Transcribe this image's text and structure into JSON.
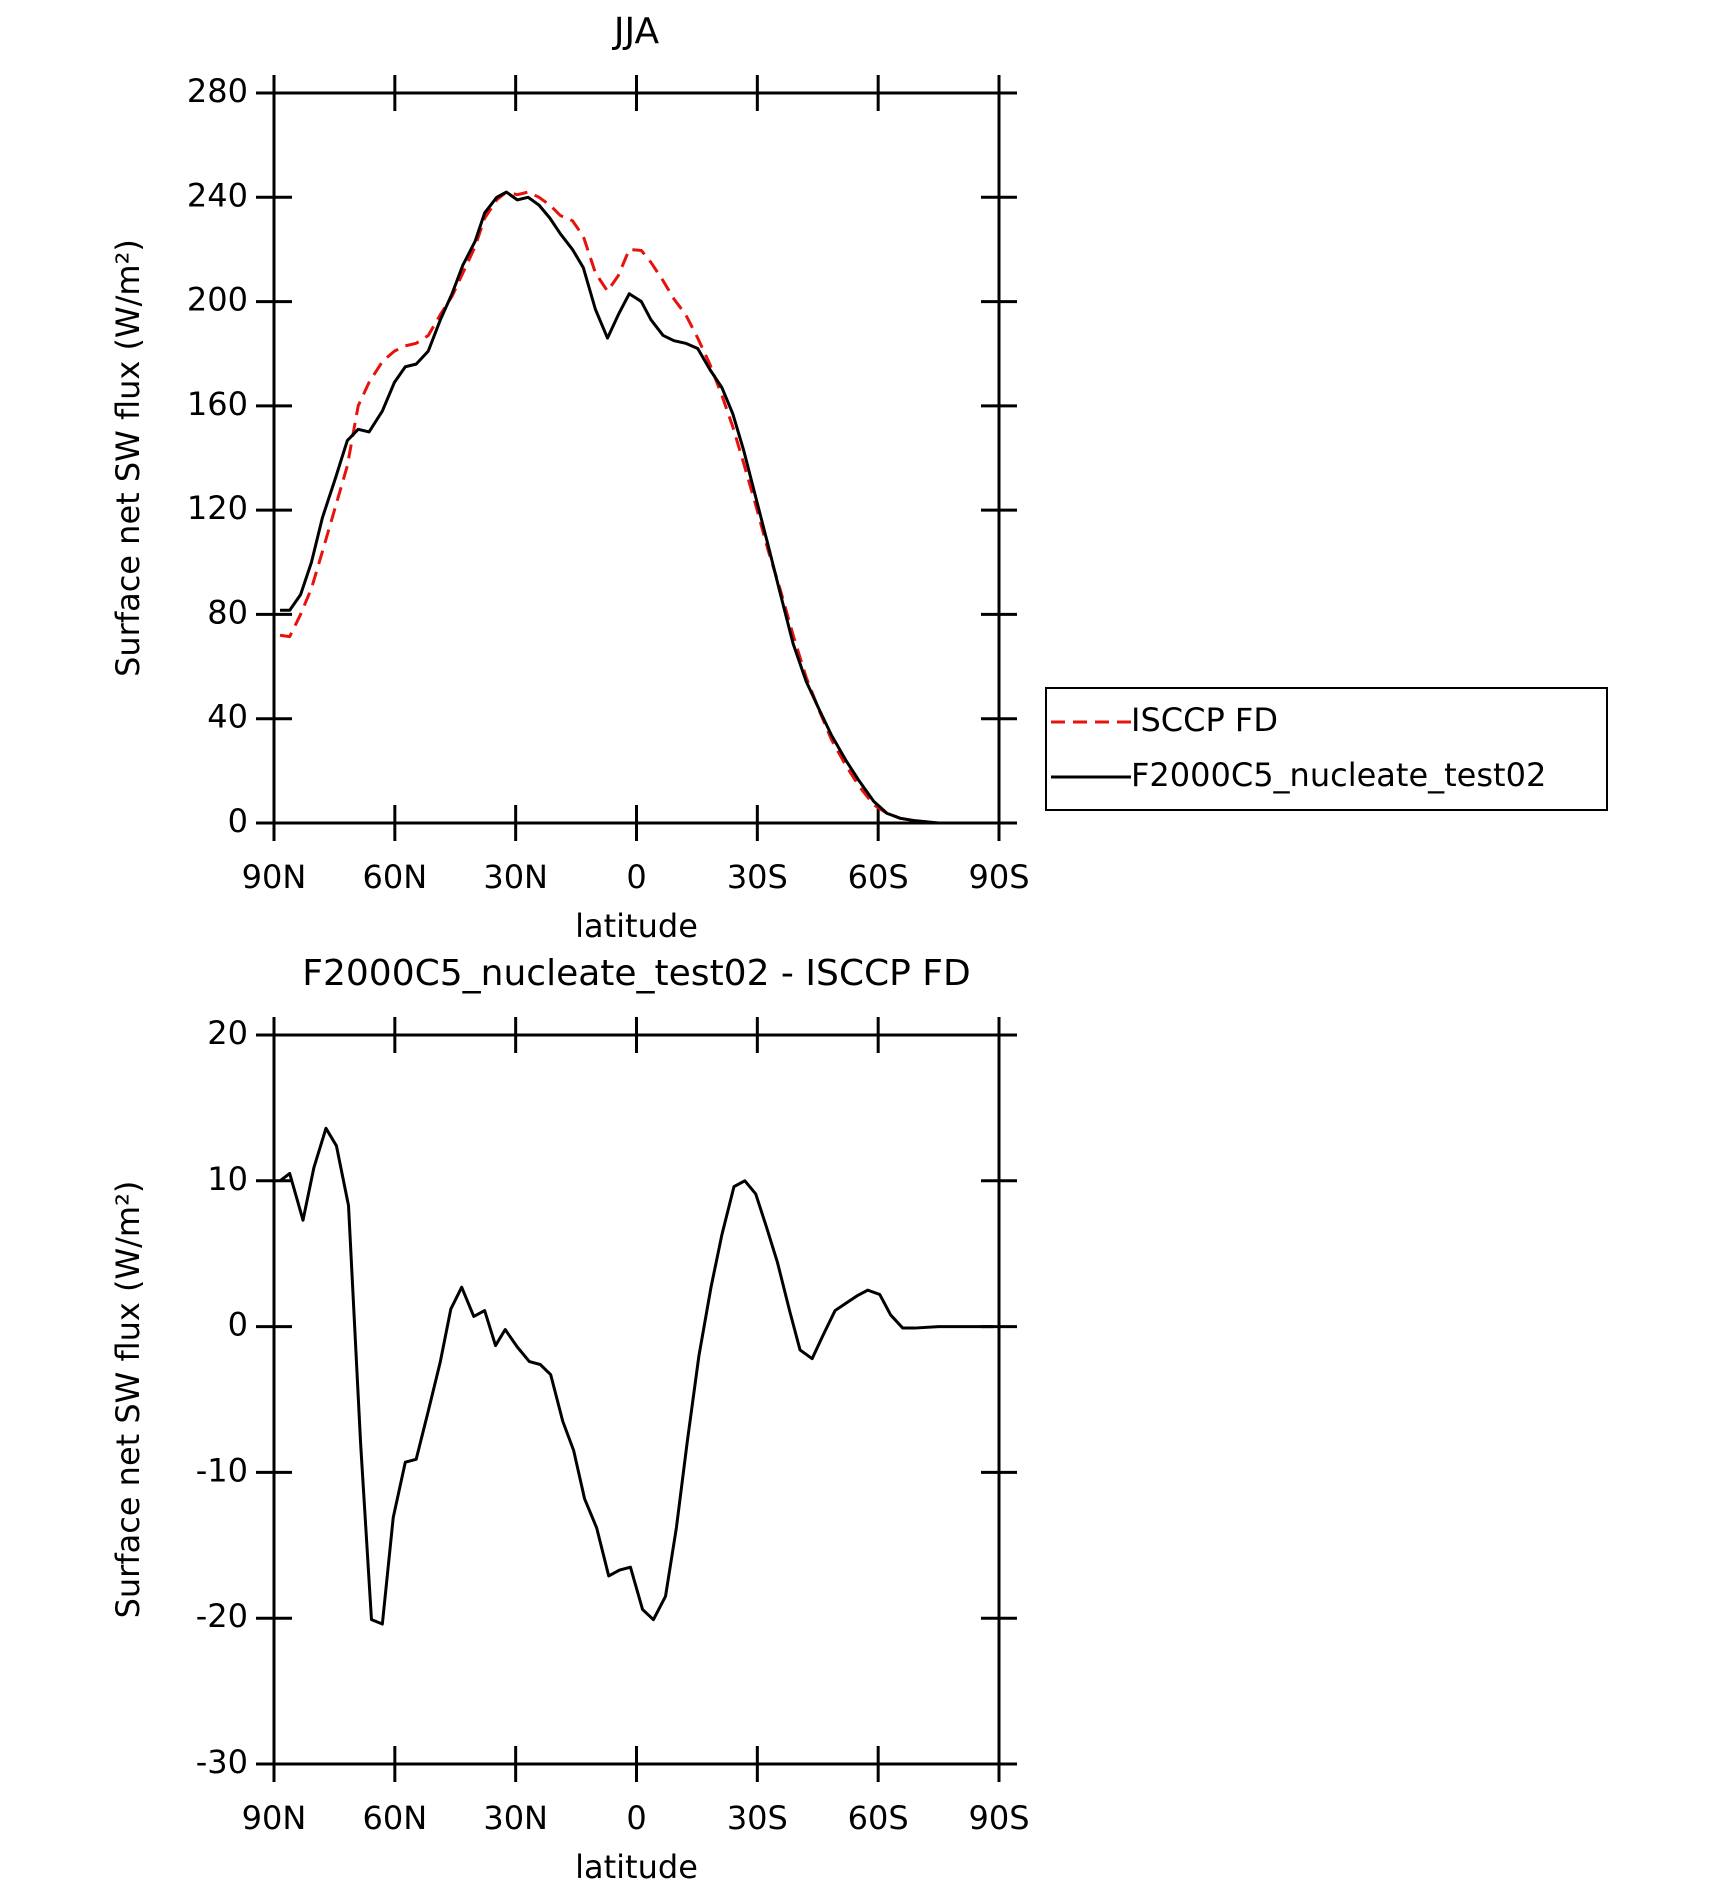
{
  "chart_data": [
    {
      "type": "line",
      "title": "JJA",
      "xlabel": "latitude",
      "ylabel": "Surface net SW flux (W/m²)",
      "x": [
        88.5,
        86.1,
        83.4,
        80.7,
        78.0,
        74.8,
        71.8,
        69.1,
        66.4,
        63.1,
        60.1,
        57.4,
        54.7,
        51.7,
        48.7,
        45.8,
        43.1,
        40.1,
        37.7,
        34.7,
        32.3,
        29.6,
        26.9,
        24.2,
        21.5,
        18.9,
        15.9,
        13.2,
        10.2,
        7.2,
        4.5,
        1.8,
        -1.2,
        -3.6,
        -6.6,
        -9.3,
        -12.2,
        -15.2,
        -18.2,
        -21.2,
        -23.9,
        -26.6,
        -29.6,
        -32.6,
        -35.6,
        -38.9,
        -42.1,
        -45.4,
        -48.4,
        -52.0,
        -55.3,
        -58.9,
        -62.2,
        -65.5,
        -69.0,
        -75.0,
        -81.0,
        -88.8
      ],
      "series": [
        {
          "name": "ISCCP FD",
          "color": "#e8120c",
          "dash": true,
          "values": [
            72,
            71.5,
            80,
            90,
            104,
            121,
            137,
            160,
            169,
            177,
            181,
            183,
            184,
            187,
            195,
            202,
            211,
            221,
            232,
            239,
            242,
            241,
            242,
            240,
            237,
            233,
            231,
            225,
            211,
            204,
            210,
            220,
            219.6,
            215,
            208,
            201,
            195,
            186,
            176,
            164,
            152,
            138,
            122,
            105,
            90,
            72,
            56,
            43,
            32,
            22,
            14,
            7,
            3.7,
            1.8,
            0.9,
            0,
            0,
            0
          ]
        },
        {
          "name": "F2000C5_nucleate_test02",
          "color": "#000000",
          "dash": false,
          "values": [
            81.6,
            81.6,
            87.6,
            100,
            117,
            132,
            146.7,
            151,
            150,
            158,
            169,
            175,
            176,
            181,
            193,
            203,
            214,
            223,
            234,
            240,
            242,
            239,
            240,
            237,
            232,
            226,
            220,
            213,
            197,
            186,
            195,
            203,
            200,
            193,
            187,
            185,
            184,
            182,
            174,
            167,
            157,
            143,
            125,
            107,
            88.6,
            68.7,
            54.4,
            43.4,
            33.7,
            24,
            16.1,
            8.3,
            3.7,
            1.8,
            0.9,
            0,
            0,
            0
          ]
        }
      ],
      "xlim": [
        90,
        -90
      ],
      "xticks": [
        {
          "value": 90,
          "label": "90N"
        },
        {
          "value": 60,
          "label": "60N"
        },
        {
          "value": 30,
          "label": "30N"
        },
        0,
        {
          "value": -30,
          "label": "30S"
        },
        {
          "value": -60,
          "label": "60S"
        },
        {
          "value": -90,
          "label": "90S"
        }
      ],
      "ylim": [
        0,
        280
      ],
      "yticks": [
        0,
        40,
        80,
        120,
        160,
        200,
        240,
        280
      ],
      "legend": "right"
    },
    {
      "type": "line",
      "title": "F2000C5_nucleate_test02 - ISCCP FD",
      "xlabel": "latitude",
      "ylabel": "Surface net SW flux (W/m²)",
      "x": [
        88.5,
        86.1,
        82.8,
        80.1,
        77.1,
        74.5,
        71.5,
        68.5,
        65.8,
        63.1,
        60.4,
        57.4,
        54.7,
        51.7,
        48.7,
        46.1,
        43.4,
        40.4,
        37.7,
        35.0,
        32.6,
        29.6,
        26.6,
        23.9,
        21.3,
        18.3,
        15.6,
        12.9,
        9.9,
        6.9,
        4.2,
        1.5,
        -1.5,
        -4.2,
        -7.2,
        -9.9,
        -12.6,
        -15.5,
        -18.5,
        -21.2,
        -24.2,
        -26.9,
        -29.6,
        -32.3,
        -35.0,
        -38.0,
        -40.6,
        -43.6,
        -46.3,
        -49.3,
        -52.0,
        -54.7,
        -57.4,
        -60.4,
        -63.1,
        -66.1,
        -69.0,
        -75.0,
        -81.0,
        -88.5
      ],
      "series": [
        {
          "color": "#000000",
          "dash": false,
          "values": [
            10,
            10.5,
            7.3,
            10.9,
            13.6,
            12.4,
            8.3,
            -8.0,
            -20.1,
            -20.4,
            -13.1,
            -9.3,
            -9.1,
            -5.8,
            -2.4,
            1.2,
            2.7,
            0.7,
            1.1,
            -1.3,
            -0.2,
            -1.4,
            -2.4,
            -2.6,
            -3.3,
            -6.5,
            -8.5,
            -11.8,
            -13.8,
            -17.1,
            -16.7,
            -16.5,
            -19.4,
            -20.1,
            -18.5,
            -13.8,
            -7.9,
            -2,
            2.7,
            6.3,
            9.6,
            10,
            9.1,
            6.8,
            4.4,
            1.1,
            -1.6,
            -2.2,
            -0.6,
            1.1,
            1.6,
            2.1,
            2.5,
            2.2,
            0.8,
            -0.1,
            -0.1,
            0,
            0,
            0
          ]
        }
      ],
      "xlim": [
        90,
        -90
      ],
      "xticks": [
        {
          "value": 90,
          "label": "90N"
        },
        {
          "value": 60,
          "label": "60N"
        },
        {
          "value": 30,
          "label": "30N"
        },
        0,
        {
          "value": -30,
          "label": "30S"
        },
        {
          "value": -60,
          "label": "60S"
        },
        {
          "value": -90,
          "label": "90S"
        }
      ],
      "ylim": [
        -30,
        20
      ],
      "yticks": [
        -30,
        -20,
        -10,
        0,
        10,
        20
      ]
    }
  ]
}
